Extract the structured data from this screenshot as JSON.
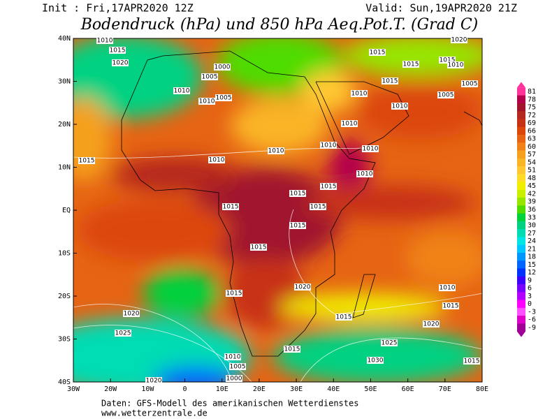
{
  "header": {
    "init": "Init : Fri,17APR2020 12Z",
    "valid": "Valid: Sun,19APR2020 21Z",
    "title": "Bodendruck (hPa) und 850 hPa Aeq.Pot.T. (Grad C)"
  },
  "map": {
    "lat_labels": [
      "40N",
      "30N",
      "20N",
      "10N",
      "EQ",
      "10S",
      "20S",
      "30S",
      "40S"
    ],
    "lon_labels": [
      "30W",
      "20W",
      "10W",
      "0",
      "10E",
      "20E",
      "30E",
      "40E",
      "50E",
      "60E",
      "70E",
      "80E"
    ],
    "isobar_labels": [
      "1010",
      "1015",
      "1020",
      "1000",
      "1005",
      "1010",
      "1010",
      "1005",
      "1015",
      "1015",
      "1015",
      "1010",
      "1010",
      "1015",
      "1010",
      "1005",
      "1005",
      "1020",
      "1010",
      "1010",
      "1010",
      "1010",
      "1010",
      "1015",
      "1010",
      "1015",
      "1015",
      "1015",
      "1015",
      "1015",
      "1015",
      "1020",
      "1015",
      "1010",
      "1015",
      "1015",
      "1020",
      "1020",
      "1025",
      "1025",
      "1015",
      "1030",
      "1010",
      "1005",
      "1000",
      "1020",
      "1015"
    ]
  },
  "legend": {
    "values": [
      81,
      78,
      75,
      72,
      69,
      66,
      63,
      60,
      57,
      54,
      51,
      48,
      45,
      42,
      39,
      36,
      33,
      30,
      27,
      24,
      21,
      18,
      15,
      12,
      9,
      6,
      3,
      0,
      -3,
      -6,
      -9
    ],
    "colors": [
      "#ff3399",
      "#b4004b",
      "#a0142d",
      "#b4281e",
      "#c83214",
      "#dc460a",
      "#e66414",
      "#f08219",
      "#f5a01e",
      "#fab428",
      "#ffc832",
      "#ffdc28",
      "#f0f000",
      "#c8f000",
      "#96e600",
      "#50dc00",
      "#00d23c",
      "#00d282",
      "#00dcb4",
      "#00e6e6",
      "#00c8ff",
      "#0096ff",
      "#0064ff",
      "#0032ff",
      "#3c00ff",
      "#7800ff",
      "#b400ff",
      "#ff00ff",
      "#ff50ff",
      "#e000c8",
      "#a00096"
    ]
  },
  "footer": {
    "source": "Daten: GFS-Modell des amerikanischen Wetterdienstes",
    "url": "www.wetterzentrale.de"
  }
}
